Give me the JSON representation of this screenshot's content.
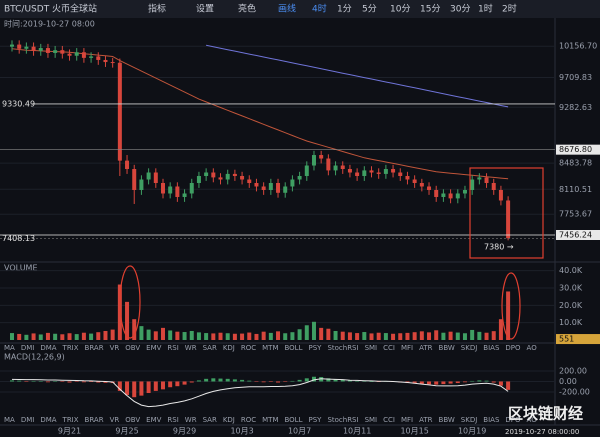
{
  "toolbar": {
    "items": [
      "指标",
      "设置",
      "亮色",
      "画线",
      "4时",
      "1分",
      "5分",
      "10分",
      "15分",
      "30分",
      "1时",
      "2时"
    ],
    "active": [
      "画线",
      "4时"
    ]
  },
  "indicator_tabs": [
    "MA",
    "DMI",
    "DMA",
    "TRIX",
    "BRAR",
    "VR",
    "OBV",
    "EMV",
    "RSI",
    "WR",
    "SAR",
    "KDJ",
    "ROC",
    "MTM",
    "BOLL",
    "PSY",
    "StochRSI",
    "SMI",
    "CCI",
    "MFI",
    "ATR",
    "BBW",
    "SKDJ",
    "BIAS",
    "DPO",
    "AO"
  ],
  "watermark": "区块链财经",
  "footer_time": "2019-10-27 08:00:00",
  "chart_data": [
    {
      "type": "candlestick",
      "title": "BTC/USDT 火币全球站",
      "subtitle": "时间:2019-10-27 08:00",
      "categories": [
        null,
        null,
        null,
        null,
        null,
        null,
        null,
        null,
        "9月21",
        null,
        null,
        null,
        null,
        null,
        null,
        null,
        "9月25",
        null,
        null,
        null,
        null,
        null,
        null,
        null,
        "9月29",
        null,
        null,
        null,
        null,
        null,
        null,
        null,
        "10月3",
        null,
        null,
        null,
        null,
        null,
        null,
        null,
        "10月7",
        null,
        null,
        null,
        null,
        null,
        null,
        null,
        "10月11",
        null,
        null,
        null,
        null,
        null,
        null,
        null,
        "10月15",
        null,
        null,
        null,
        null,
        null,
        null,
        null,
        "10月19",
        null,
        null,
        null,
        null,
        null
      ],
      "open": [
        10150,
        10180,
        10120,
        10150,
        10090,
        10130,
        10060,
        10100,
        10050,
        10020,
        10070,
        9990,
        10010,
        9960,
        9930,
        9920,
        8520,
        8400,
        8100,
        8250,
        8350,
        8200,
        8050,
        8150,
        8000,
        8050,
        8200,
        8300,
        8350,
        8280,
        8250,
        8330,
        8300,
        8250,
        8200,
        8150,
        8100,
        8200,
        8060,
        8150,
        8250,
        8300,
        8450,
        8600,
        8550,
        8380,
        8450,
        8400,
        8350,
        8300,
        8380,
        8350,
        8330,
        8400,
        8350,
        8300,
        8250,
        8200,
        8150,
        8100,
        8000,
        8050,
        7980,
        8050,
        8100,
        8250,
        8280,
        8200,
        8100,
        7950
      ],
      "high": [
        10240,
        10240,
        10210,
        10210,
        10190,
        10190,
        10160,
        10160,
        10110,
        10130,
        10130,
        10070,
        10070,
        10020,
        9990,
        9980,
        8600,
        8460,
        8310,
        8410,
        8410,
        8260,
        8210,
        8210,
        8110,
        8260,
        8360,
        8410,
        8410,
        8340,
        8390,
        8390,
        8360,
        8310,
        8260,
        8210,
        8260,
        8260,
        8210,
        8310,
        8360,
        8510,
        8660,
        8660,
        8610,
        8510,
        8510,
        8460,
        8410,
        8440,
        8440,
        8410,
        8460,
        8460,
        8410,
        8360,
        8310,
        8260,
        8210,
        8160,
        8110,
        8110,
        8110,
        8160,
        8310,
        8340,
        8340,
        8260,
        8160,
        8010
      ],
      "low": [
        10080,
        10050,
        10050,
        10020,
        10020,
        9990,
        9990,
        9980,
        9950,
        9950,
        9920,
        9920,
        9890,
        9860,
        9850,
        8300,
        8330,
        7900,
        8030,
        8180,
        8130,
        7980,
        7980,
        7930,
        7930,
        7980,
        8130,
        8230,
        8210,
        8180,
        8180,
        8230,
        8180,
        8130,
        8080,
        8030,
        8030,
        7990,
        7990,
        8080,
        8180,
        8230,
        8380,
        8480,
        8310,
        8310,
        8330,
        8280,
        8230,
        8230,
        8280,
        8260,
        8260,
        8280,
        8230,
        8180,
        8130,
        8080,
        8030,
        7930,
        7930,
        7910,
        7910,
        7980,
        8030,
        8180,
        8130,
        8030,
        7880,
        7380
      ],
      "close": [
        10180,
        10120,
        10150,
        10090,
        10130,
        10060,
        10100,
        10050,
        10020,
        10070,
        9990,
        10010,
        9960,
        9930,
        9920,
        8520,
        8400,
        8100,
        8250,
        8350,
        8200,
        8050,
        8150,
        8000,
        8050,
        8200,
        8300,
        8350,
        8280,
        8250,
        8330,
        8300,
        8250,
        8200,
        8150,
        8100,
        8200,
        8060,
        8150,
        8250,
        8300,
        8450,
        8600,
        8550,
        8380,
        8450,
        8400,
        8350,
        8300,
        8380,
        8350,
        8330,
        8400,
        8350,
        8300,
        8250,
        8200,
        8150,
        8100,
        8000,
        8050,
        7980,
        8050,
        8100,
        8250,
        8280,
        8200,
        8100,
        7950,
        7410
      ],
      "up_color": "#3f9f63",
      "down_color": "#d8463c",
      "ma_lines": [
        {
          "color": "#6f74d8",
          "values": [
            null,
            null,
            null,
            null,
            null,
            null,
            null,
            null,
            null,
            null,
            null,
            null,
            null,
            null,
            null,
            null,
            null,
            null,
            null,
            null,
            null,
            null,
            null,
            null,
            null,
            null,
            null,
            10170,
            10149,
            10128,
            10107,
            10086,
            10065,
            10044,
            10023,
            10002,
            9981,
            9960,
            9939,
            9918,
            9897,
            9876,
            9855,
            9834,
            9813,
            9792,
            9771,
            9750,
            9729,
            9708,
            9687,
            9666,
            9645,
            9624,
            9603,
            9582,
            9561,
            9540,
            9519,
            9498,
            9477,
            9456,
            9435,
            9414,
            9393,
            9372,
            9351,
            9330,
            9309,
            9288
          ]
        },
        {
          "color": "#c0553a",
          "values": [
            10120,
            10110,
            10100,
            10095,
            10090,
            10085,
            10080,
            10075,
            10070,
            10060,
            10050,
            10040,
            10030,
            10020,
            10010,
            9950,
            9900,
            9850,
            9800,
            9750,
            9700,
            9650,
            9600,
            9550,
            9500,
            9450,
            9400,
            9360,
            9320,
            9280,
            9240,
            9200,
            9160,
            9120,
            9080,
            9040,
            9000,
            8960,
            8920,
            8880,
            8840,
            8800,
            8770,
            8740,
            8710,
            8680,
            8650,
            8620,
            8590,
            8560,
            8540,
            8520,
            8500,
            8480,
            8460,
            8440,
            8420,
            8400,
            8380,
            8360,
            8350,
            8340,
            8330,
            8320,
            8310,
            8300,
            8290,
            8280,
            8270,
            8260
          ]
        }
      ],
      "ylim": [
        7070,
        10560
      ],
      "yticks": [
        {
          "value": 10156.7,
          "label": "10156.70"
        },
        9709.83,
        9282.63,
        8483.78,
        8110.51,
        7753.67
      ],
      "high_line": 9330.49,
      "low_line": 7408.13,
      "mark_line": {
        "value": 8676.8,
        "label": "8676.80"
      },
      "last_price": 7456.24,
      "annotation": "7380 →"
    },
    {
      "type": "bar",
      "title": "VOLUME",
      "values": [
        4000,
        3500,
        3000,
        3800,
        3200,
        4100,
        3600,
        3300,
        3900,
        3400,
        4200,
        3700,
        4500,
        5200,
        6000,
        32000,
        22000,
        12000,
        8000,
        6000,
        5000,
        7000,
        5500,
        4800,
        4600,
        5200,
        4400,
        4000,
        3800,
        4200,
        3900,
        3600,
        3700,
        4300,
        3500,
        4800,
        4100,
        5000,
        3900,
        4500,
        6200,
        8500,
        10500,
        7000,
        6500,
        5200,
        4800,
        4400,
        4000,
        4600,
        3800,
        4200,
        4000,
        3600,
        3900,
        4100,
        4500,
        5000,
        4400,
        5600,
        4200,
        4800,
        4300,
        3900,
        5800,
        4700,
        4200,
        5100,
        12000,
        28000
      ],
      "ylim": [
        0,
        45000
      ],
      "yticks": [
        {
          "value": 40000,
          "label": "40.0K"
        },
        {
          "value": 30000,
          "label": "30.0K"
        },
        {
          "value": 20000,
          "label": "20.0K"
        },
        {
          "value": 10000,
          "label": "10.0K"
        }
      ],
      "last_value": 551
    },
    {
      "type": "bar",
      "title": "MACD(12,26,9)",
      "values": [
        20,
        15,
        -10,
        10,
        5,
        -15,
        5,
        -10,
        -20,
        -5,
        -15,
        -10,
        -20,
        -25,
        -30,
        -180,
        -260,
        -300,
        -270,
        -220,
        -180,
        -150,
        -110,
        -90,
        -60,
        -20,
        20,
        50,
        60,
        55,
        50,
        40,
        30,
        15,
        -5,
        -15,
        -10,
        -20,
        -10,
        10,
        30,
        60,
        90,
        85,
        60,
        45,
        35,
        20,
        10,
        5,
        0,
        -5,
        5,
        -10,
        -20,
        -30,
        -40,
        -50,
        -55,
        -60,
        -50,
        -40,
        -30,
        -15,
        10,
        20,
        15,
        -20,
        -80,
        -160
      ],
      "line": [
        40,
        38,
        35,
        35,
        33,
        28,
        28,
        25,
        20,
        18,
        12,
        10,
        5,
        0,
        -10,
        -150,
        -270,
        -380,
        -450,
        -480,
        -470,
        -450,
        -420,
        -400,
        -370,
        -330,
        -280,
        -230,
        -190,
        -160,
        -140,
        -120,
        -110,
        -100,
        -100,
        -100,
        -95,
        -95,
        -90,
        -80,
        -60,
        -20,
        30,
        50,
        45,
        40,
        35,
        25,
        20,
        15,
        10,
        5,
        5,
        0,
        -10,
        -20,
        -35,
        -50,
        -65,
        -80,
        -85,
        -85,
        -80,
        -70,
        -50,
        -40,
        -35,
        -50,
        -90,
        -190
      ],
      "line_color": "#e8e8e8",
      "ylim": [
        -830,
        600
      ],
      "yticks": [
        {
          "value": 200,
          "label": "200.00"
        },
        {
          "value": 0,
          "label": "0.00"
        },
        {
          "value": -200,
          "label": "-200.00"
        }
      ]
    }
  ]
}
